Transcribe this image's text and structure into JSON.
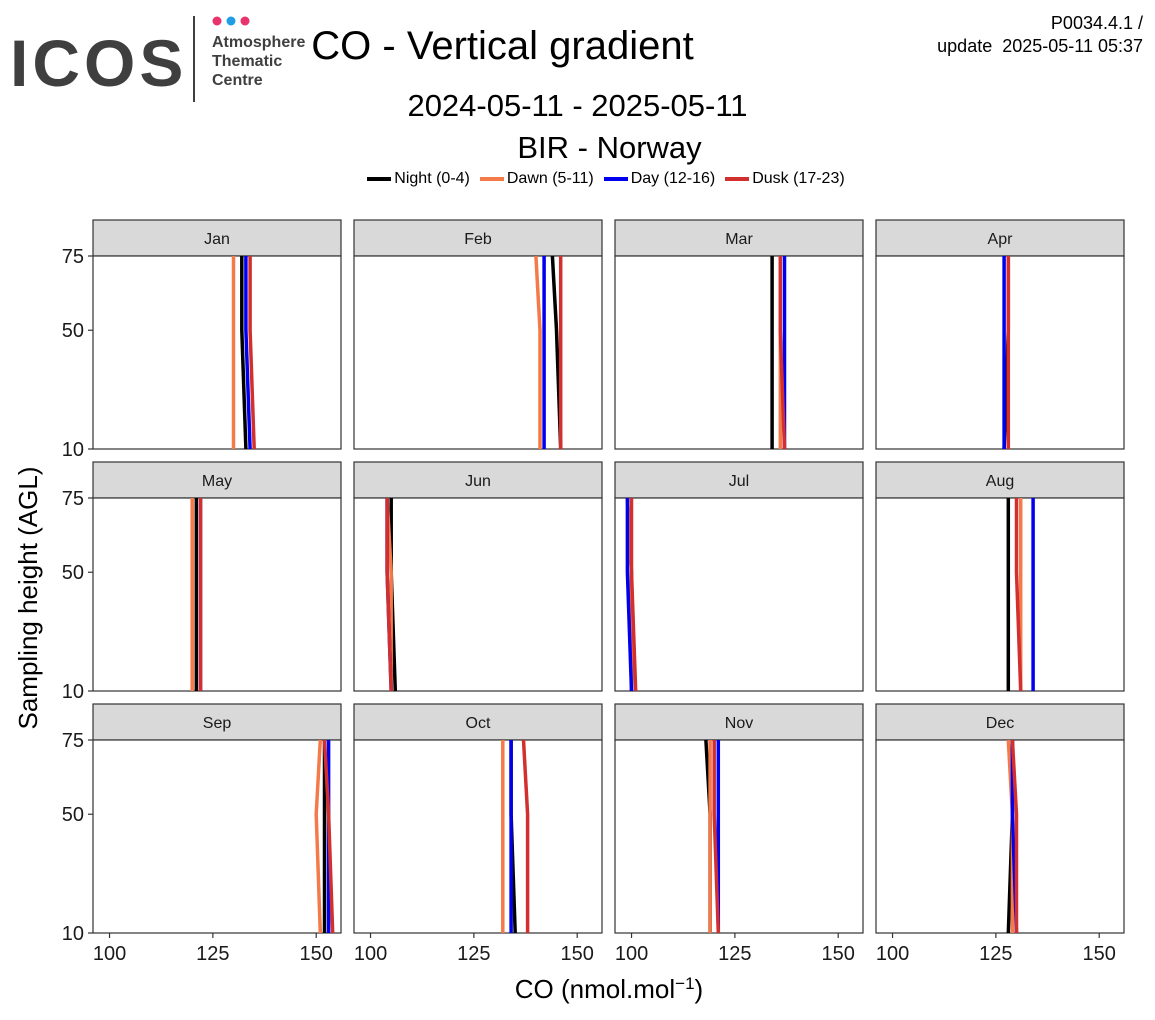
{
  "header": {
    "logo_text": "ICOS",
    "logo_subtitle": [
      "Atmosphere",
      "Thematic",
      "Centre"
    ],
    "product_code": "P0034.4.1 /",
    "update_text": "update  2025-05-11 05:37"
  },
  "chart_data": {
    "type": "line",
    "title": "CO - Vertical gradient",
    "subtitle": "2024-05-11 - 2025-05-11",
    "station": "BIR - Norway",
    "xlabel": "CO (nmol.mol",
    "xlabel_sup": "−1",
    "xlabel_close": ")",
    "ylabel": "Sampling height (AGL)",
    "xlim": [
      96,
      156
    ],
    "x_ticks": [
      100,
      125,
      150
    ],
    "ylim": [
      10,
      75
    ],
    "y_ticks": [
      10,
      50,
      75
    ],
    "heights": [
      10,
      50,
      75
    ],
    "legend_position": "top",
    "series_colors": [
      "#000000",
      "#f47a4a",
      "#0000ee",
      "#d2302f"
    ],
    "series_names": [
      "Night (0-4)",
      "Dawn (5-11)",
      "Day (12-16)",
      "Dusk (17-23)"
    ],
    "panels": [
      {
        "label": "Jan",
        "values": [
          [
            133,
            132,
            132
          ],
          [
            130,
            130,
            130
          ],
          [
            134,
            133,
            133
          ],
          [
            135,
            134,
            134
          ]
        ]
      },
      {
        "label": "Feb",
        "values": [
          [
            146,
            145,
            144
          ],
          [
            141,
            141,
            140
          ],
          [
            142,
            142,
            142
          ],
          [
            146,
            146,
            146
          ]
        ]
      },
      {
        "label": "Mar",
        "values": [
          [
            134,
            134,
            134
          ],
          [
            136,
            136,
            136
          ],
          [
            137,
            137,
            137
          ],
          [
            137,
            136,
            136
          ]
        ]
      },
      {
        "label": "Apr",
        "values": [
          [
            127,
            128,
            128
          ],
          [
            128,
            128,
            128
          ],
          [
            127,
            127,
            127
          ],
          [
            128,
            128,
            128
          ]
        ]
      },
      {
        "label": "May",
        "values": [
          [
            121,
            121,
            121
          ],
          [
            120,
            120,
            120
          ],
          [
            122,
            122,
            122
          ],
          [
            122,
            122,
            122
          ]
        ]
      },
      {
        "label": "Jun",
        "values": [
          [
            106,
            105,
            105
          ],
          [
            105,
            105,
            104
          ],
          [
            105,
            104,
            104
          ],
          [
            105,
            104,
            104
          ]
        ]
      },
      {
        "label": "Jul",
        "values": [
          [
            100,
            100,
            99
          ],
          [
            100,
            100,
            99
          ],
          [
            100,
            99,
            99
          ],
          [
            101,
            100,
            100
          ]
        ]
      },
      {
        "label": "Aug",
        "values": [
          [
            128,
            128,
            128
          ],
          [
            131,
            131,
            131
          ],
          [
            134,
            134,
            134
          ],
          [
            131,
            130,
            130
          ]
        ]
      },
      {
        "label": "Sep",
        "values": [
          [
            152,
            152,
            152
          ],
          [
            151,
            150,
            151
          ],
          [
            153,
            153,
            153
          ],
          [
            154,
            153,
            152
          ]
        ]
      },
      {
        "label": "Oct",
        "values": [
          [
            135,
            134,
            134
          ],
          [
            132,
            132,
            132
          ],
          [
            134,
            134,
            134
          ],
          [
            138,
            138,
            137
          ]
        ]
      },
      {
        "label": "Nov",
        "values": [
          [
            119,
            119,
            118
          ],
          [
            119,
            119,
            119
          ],
          [
            121,
            121,
            121
          ],
          [
            121,
            120,
            120
          ]
        ]
      },
      {
        "label": "Dec",
        "values": [
          [
            128,
            129,
            129
          ],
          [
            129,
            129,
            128
          ],
          [
            130,
            129,
            129
          ],
          [
            130,
            130,
            129
          ]
        ]
      }
    ]
  }
}
